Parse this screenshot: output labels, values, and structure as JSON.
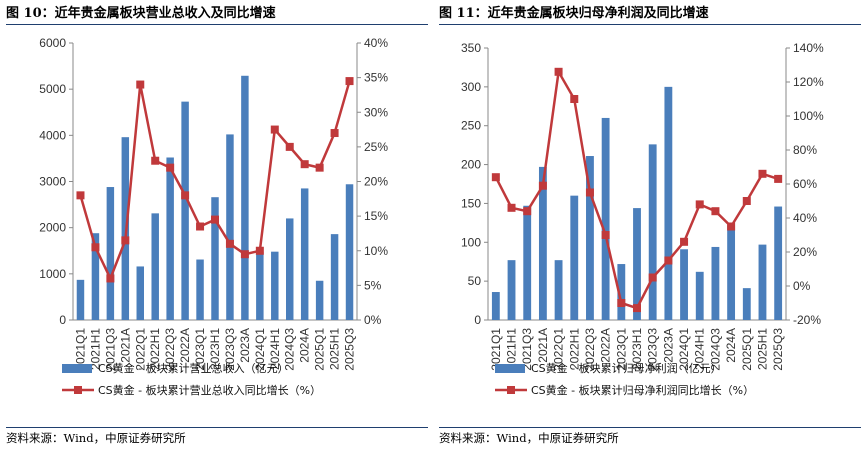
{
  "source_text": "资料来源：Wind，中原证券研究所",
  "colors": {
    "bar": "#4a7ebb",
    "line": "#c0393b",
    "axis": "#888888"
  },
  "chart_data": [
    {
      "type": "bar+line",
      "title": "图 10：近年贵金属板块营业总收入及同比增速",
      "categories": [
        "2021Q1",
        "2021H1",
        "2021Q3",
        "2021A",
        "2022Q1",
        "2022H1",
        "2022Q3",
        "2022A",
        "2023Q1",
        "2023H1",
        "2023Q3",
        "2023A",
        "2024Q1",
        "2024H1",
        "2024Q3",
        "2024A",
        "2025Q1",
        "2025H1",
        "2025Q3"
      ],
      "series": [
        {
          "name": "CS黄金 - 板块累计营业总收入（亿元）",
          "kind": "bar",
          "axis": "left",
          "values": [
            870,
            1880,
            2880,
            3960,
            1160,
            2310,
            3520,
            4730,
            1310,
            2660,
            4020,
            5290,
            1470,
            1480,
            2200,
            2850,
            850,
            1860,
            2940
          ]
        },
        {
          "name": "CS黄金 - 板块累计营业总收入同比增长（%）",
          "kind": "line",
          "axis": "right",
          "values": [
            18,
            10.5,
            6,
            11.5,
            34,
            23,
            22,
            18,
            13.5,
            14.5,
            11,
            9.5,
            10,
            27.5,
            25,
            22.5,
            22,
            27,
            34.5
          ]
        }
      ],
      "ylim_left": [
        0,
        6000
      ],
      "yticks_left": [
        "0",
        "1000",
        "2000",
        "3000",
        "4000",
        "5000",
        "6000"
      ],
      "ylim_right": [
        0,
        40
      ],
      "yticks_right": [
        "0%",
        "5%",
        "10%",
        "15%",
        "20%",
        "25%",
        "30%",
        "35%",
        "40%"
      ]
    },
    {
      "type": "bar+line",
      "title": "图 11：近年贵金属板块归母净利润及同比增速",
      "categories": [
        "2021Q1",
        "2021H1",
        "2021Q3",
        "2021A",
        "2022Q1",
        "2022H1",
        "2022Q3",
        "2022A",
        "2023Q1",
        "2023H1",
        "2023Q3",
        "2023A",
        "2024Q1",
        "2024H1",
        "2024Q3",
        "2024A",
        "2025Q1",
        "2025H1",
        "2025Q3"
      ],
      "series": [
        {
          "name": "CS黄金 - 板块累计归母净利润（亿元）",
          "kind": "bar",
          "axis": "left",
          "values": [
            36,
            77,
            147,
            197,
            77,
            160,
            211,
            260,
            72,
            144,
            226,
            300,
            91,
            62,
            94,
            122,
            41,
            97,
            146
          ]
        },
        {
          "name": "CS黄金 - 板块累计归母净利润同比增长（%）",
          "kind": "line",
          "axis": "right",
          "values": [
            64,
            46,
            44,
            59,
            126,
            110,
            55,
            30,
            -10,
            -13,
            5,
            15,
            26,
            48,
            44,
            35,
            50,
            66,
            63
          ]
        }
      ],
      "ylim_left": [
        0,
        350
      ],
      "yticks_left": [
        "0",
        "50",
        "100",
        "150",
        "200",
        "250",
        "300",
        "350"
      ],
      "ylim_right": [
        -20,
        140
      ],
      "yticks_right": [
        "-20%",
        "0%",
        "20%",
        "40%",
        "60%",
        "80%",
        "100%",
        "120%",
        "140%"
      ]
    }
  ]
}
